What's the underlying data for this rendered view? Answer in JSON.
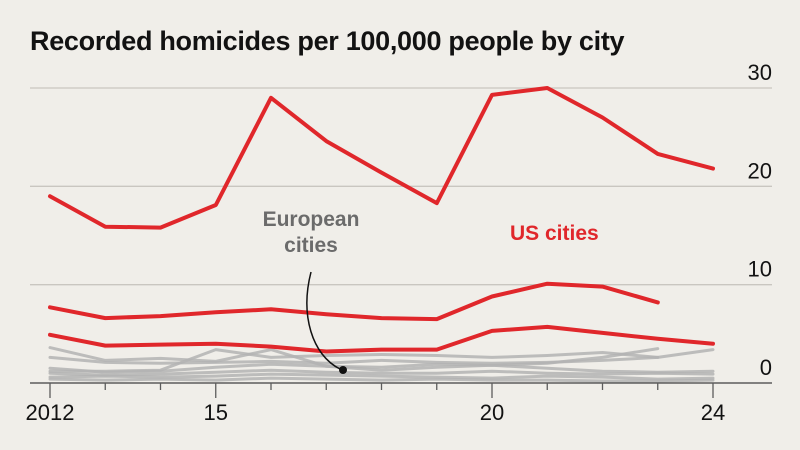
{
  "title": "Recorded homicides per 100,000 people by city",
  "colors": {
    "background": "#f0eee9",
    "us": "#e0272b",
    "europe": "#b3b3b3",
    "grid": "#c9c6c0",
    "text": "#121212",
    "europe_label": "#6b6b6b"
  },
  "chart_data": {
    "type": "line",
    "title": "Recorded homicides per 100,000 people by city",
    "xlabel": "",
    "ylabel": "",
    "x": [
      2012,
      2013,
      2014,
      2015,
      2016,
      2017,
      2018,
      2019,
      2020,
      2021,
      2022,
      2023,
      2024
    ],
    "xlim": [
      2012,
      2024
    ],
    "ylim": [
      0,
      30
    ],
    "x_ticks": [
      {
        "value": 2012,
        "label": "2012"
      },
      {
        "value": 2015,
        "label": "15"
      },
      {
        "value": 2020,
        "label": "20"
      },
      {
        "value": 2024,
        "label": "24"
      }
    ],
    "y_ticks": [
      {
        "value": 0,
        "label": "0"
      },
      {
        "value": 10,
        "label": "10"
      },
      {
        "value": 20,
        "label": "20"
      },
      {
        "value": 30,
        "label": "30"
      }
    ],
    "grid": true,
    "y_axis_side": "right",
    "annotations": [
      {
        "text": "US cities",
        "color": "#e0272b"
      },
      {
        "text": "European cities",
        "lines": [
          "European",
          "cities"
        ],
        "color": "#6b6b6b"
      }
    ],
    "series": [
      {
        "group": "US cities",
        "color": "#e0272b",
        "values": [
          19.0,
          15.9,
          15.8,
          18.1,
          29.0,
          24.6,
          21.4,
          18.3,
          29.3,
          30.0,
          27.0,
          23.3,
          21.8
        ]
      },
      {
        "group": "US cities",
        "color": "#e0272b",
        "values": [
          7.7,
          6.6,
          6.8,
          7.2,
          7.5,
          7.0,
          6.6,
          6.5,
          8.8,
          10.1,
          9.8,
          8.2,
          null
        ]
      },
      {
        "group": "US cities",
        "color": "#e0272b",
        "values": [
          4.9,
          3.8,
          3.9,
          4.0,
          3.7,
          3.2,
          3.4,
          3.4,
          5.3,
          5.7,
          5.1,
          4.5,
          4.0
        ]
      },
      {
        "group": "European cities",
        "color": "#b3b3b3",
        "values": [
          3.6,
          2.3,
          2.5,
          2.2,
          3.4,
          1.7,
          1.6,
          1.9,
          1.8,
          2.0,
          2.6,
          3.5,
          null
        ]
      },
      {
        "group": "European cities",
        "color": "#b3b3b3",
        "values": [
          1.2,
          1.2,
          1.3,
          3.4,
          2.6,
          2.8,
          2.9,
          2.8,
          2.6,
          2.8,
          3.1,
          2.6,
          3.4
        ]
      },
      {
        "group": "European cities",
        "color": "#b3b3b3",
        "values": [
          1.5,
          1.1,
          1.2,
          1.6,
          1.9,
          1.7,
          1.3,
          1.6,
          1.8,
          1.5,
          1.2,
          1.1,
          1.2
        ]
      },
      {
        "group": "European cities",
        "color": "#b3b3b3",
        "values": [
          1.0,
          0.8,
          0.9,
          1.1,
          1.3,
          1.1,
          1.0,
          1.0,
          1.2,
          1.0,
          0.9,
          1.0,
          0.9
        ]
      },
      {
        "group": "European cities",
        "color": "#b3b3b3",
        "values": [
          0.6,
          0.7,
          0.6,
          0.7,
          0.9,
          0.8,
          0.7,
          0.6,
          0.5,
          0.7,
          0.6,
          0.4,
          0.5
        ]
      },
      {
        "group": "European cities",
        "color": "#b3b3b3",
        "values": [
          2.6,
          2.1,
          2.0,
          2.1,
          2.2,
          2.0,
          2.3,
          2.1,
          2.0,
          2.1,
          2.3,
          2.6,
          null
        ]
      },
      {
        "group": "European cities",
        "color": "#b3b3b3",
        "values": [
          0.4,
          0.3,
          0.4,
          0.3,
          0.5,
          0.4,
          0.3,
          0.4,
          0.3,
          0.3,
          0.2,
          0.2,
          0.3
        ]
      }
    ]
  }
}
